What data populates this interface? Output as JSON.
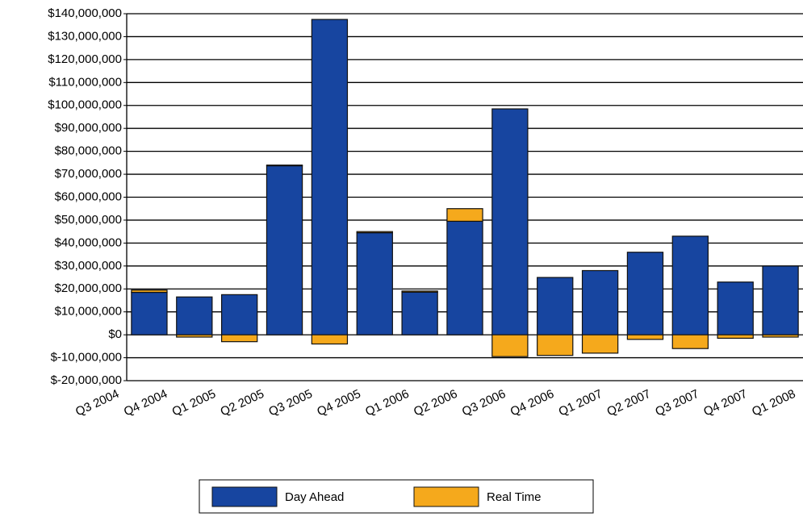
{
  "chart_data": {
    "type": "bar",
    "stacked": true,
    "categories": [
      "Q3 2004",
      "Q4 2004",
      "Q1 2005",
      "Q2 2005",
      "Q3 2005",
      "Q4 2005",
      "Q1 2006",
      "Q2 2006",
      "Q3 2006",
      "Q4 2006",
      "Q1 2007",
      "Q2 2007",
      "Q3 2007",
      "Q4 2007",
      "Q1 2008"
    ],
    "series": [
      {
        "name": "Day Ahead",
        "color": "#1745a0",
        "values": [
          18500000,
          16500000,
          17500000,
          73700000,
          137500000,
          44500000,
          18600000,
          49500000,
          98500000,
          25000000,
          28000000,
          36000000,
          43000000,
          23000000,
          30000000
        ]
      },
      {
        "name": "Real Time",
        "color": "#f5a91c",
        "values": [
          1000000,
          -1000000,
          -3000000,
          300000,
          -4000000,
          500000,
          500000,
          5500000,
          -9500000,
          -9000000,
          -8000000,
          -2000000,
          -6000000,
          -1500000,
          -1000000
        ]
      }
    ],
    "ylim": [
      -20000000,
      140000000
    ],
    "yticks": [
      {
        "value": -20000000,
        "label": "$-20,000,000"
      },
      {
        "value": -10000000,
        "label": "$-10,000,000"
      },
      {
        "value": 0,
        "label": "$0"
      },
      {
        "value": 10000000,
        "label": "$10,000,000"
      },
      {
        "value": 20000000,
        "label": "$20,000,000"
      },
      {
        "value": 30000000,
        "label": "$30,000,000"
      },
      {
        "value": 40000000,
        "label": "$40,000,000"
      },
      {
        "value": 50000000,
        "label": "$50,000,000"
      },
      {
        "value": 60000000,
        "label": "$60,000,000"
      },
      {
        "value": 70000000,
        "label": "$70,000,000"
      },
      {
        "value": 80000000,
        "label": "$80,000,000"
      },
      {
        "value": 90000000,
        "label": "$90,000,000"
      },
      {
        "value": 100000000,
        "label": "$100,000,000"
      },
      {
        "value": 110000000,
        "label": "$110,000,000"
      },
      {
        "value": 120000000,
        "label": "$120,000,000"
      },
      {
        "value": 130000000,
        "label": "$130,000,000"
      },
      {
        "value": 140000000,
        "label": "$140,000,000"
      }
    ],
    "grid": true,
    "legend": "bottom"
  }
}
